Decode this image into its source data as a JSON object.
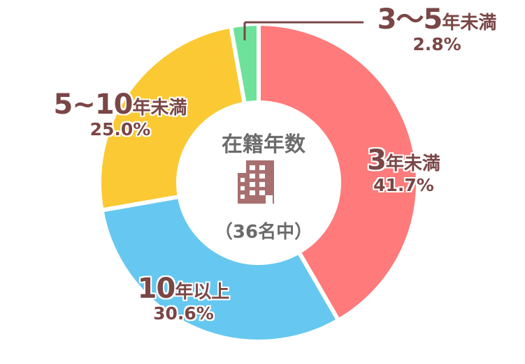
{
  "chart_data": {
    "type": "pie",
    "title": "在籍年数",
    "subtitle": "（36名中）",
    "icon": "building-icon",
    "categories": [
      "3年未満",
      "10年以上",
      "5~10年未満",
      "3～5年未満"
    ],
    "values": [
      41.7,
      30.6,
      25.0,
      2.8
    ],
    "labels": [
      {
        "big": "3",
        "small": "年未満",
        "percent": "41.7%"
      },
      {
        "big": "10",
        "small": "年以上",
        "percent": "30.6%"
      },
      {
        "big": "5~10",
        "small": "年未満",
        "percent": "25.0%"
      },
      {
        "big": "3～5",
        "small": "年未満",
        "percent": "2.8%"
      }
    ],
    "colors": [
      "#ff7a7a",
      "#66c8f0",
      "#fbc933",
      "#6ee29a"
    ],
    "text_color": "#7a4646",
    "center_text_color": "#6b6b6b",
    "icon_color": "#a86f6f"
  }
}
